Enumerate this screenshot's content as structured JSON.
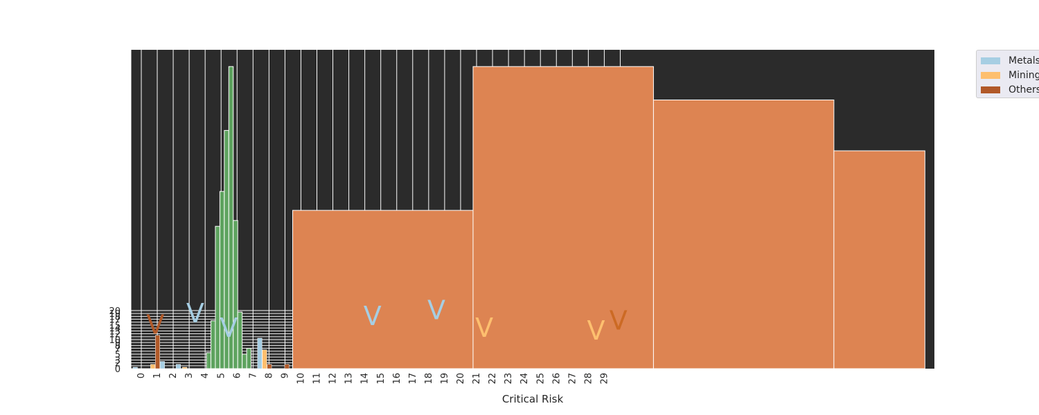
{
  "chart_data": {
    "type": "bar",
    "title": "",
    "xlabel": "Critical Risk",
    "ylabel": "",
    "x_tick_labels": [
      "0",
      "1",
      "2",
      "3",
      "4",
      "5",
      "6",
      "7",
      "8",
      "9",
      "10",
      "11",
      "12",
      "13",
      "14",
      "15",
      "16",
      "17",
      "18",
      "19",
      "20",
      "21",
      "22",
      "23",
      "24",
      "25",
      "26",
      "27",
      "28",
      "29"
    ],
    "y_tick_labels": [
      "0",
      "2",
      "3",
      "5",
      "7",
      "8",
      "9",
      "10",
      "12",
      "13",
      "14",
      "15",
      "17",
      "18",
      "19",
      "20"
    ],
    "background_color": "#2b2b2b",
    "grid": true,
    "legend_position": "outside-top-right",
    "series": [
      {
        "name": "Metals",
        "color": "#a6cee3",
        "points": [
          {
            "x": 0.0,
            "y": 0.5
          },
          {
            "x": 1.7,
            "y": 2.5
          },
          {
            "x": 2.7,
            "y": 1.5
          },
          {
            "x": 7.8,
            "y": 10.5
          }
        ]
      },
      {
        "name": "Mining",
        "color": "#fdbf6f",
        "points": [
          {
            "x": 1.1,
            "y": 1.5
          },
          {
            "x": 3.1,
            "y": 0.5
          },
          {
            "x": 8.1,
            "y": 6.5
          }
        ]
      },
      {
        "name": "Others",
        "color": "#b15928",
        "points": [
          {
            "x": 1.4,
            "y": 11.5
          },
          {
            "x": 8.4,
            "y": 1.5
          },
          {
            "x": 9.5,
            "y": 1.5
          }
        ]
      }
    ],
    "histogram": {
      "color": "#5ea35f",
      "x_start": 4.6,
      "bin_width": 0.28,
      "values": [
        5.5,
        16.5,
        49,
        61,
        82,
        104,
        51,
        19.5,
        5,
        7
      ]
    },
    "large_bars": {
      "color": "#dd8452",
      "x_ranges": [
        [
          10,
          21.3
        ],
        [
          21.3,
          32.6
        ],
        [
          32.6,
          43.9
        ],
        [
          43.9,
          49.6
        ]
      ],
      "values": [
        54.5,
        104,
        92.5,
        75
      ]
    },
    "v_markers": [
      {
        "x": 1.4,
        "y": 12,
        "color": "#b15928"
      },
      {
        "x": 3.9,
        "y": 16,
        "color": "#a6cee3"
      },
      {
        "x": 6.0,
        "y": 11,
        "color": "#a6cee3"
      },
      {
        "x": 15.0,
        "y": 15,
        "color": "#a6cee3"
      },
      {
        "x": 19.0,
        "y": 17,
        "color": "#a6cee3"
      },
      {
        "x": 22.0,
        "y": 11,
        "color": "#fdbf6f"
      },
      {
        "x": 29.0,
        "y": 10,
        "color": "#fdbf6f"
      },
      {
        "x": 30.4,
        "y": 13.5,
        "color": "#cc6a24"
      }
    ]
  }
}
